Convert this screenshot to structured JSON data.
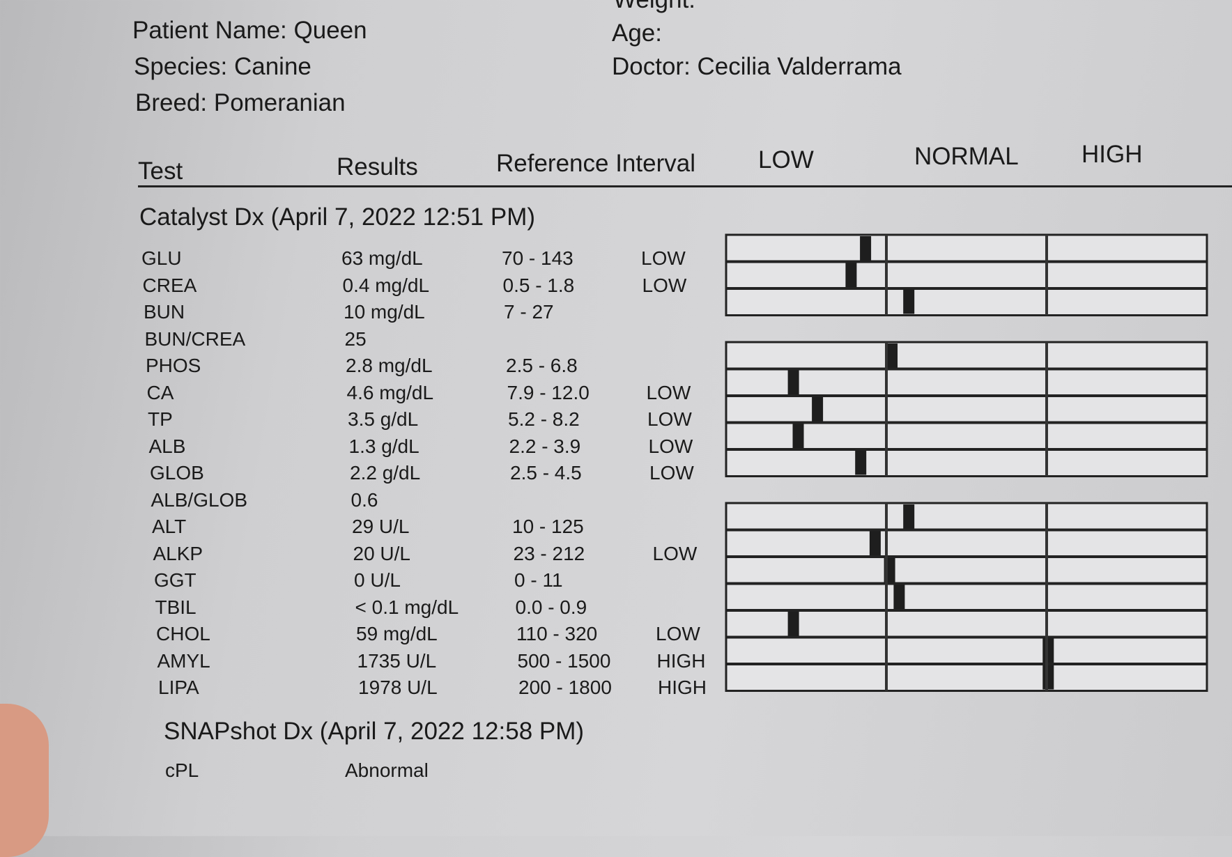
{
  "header": {
    "weight_label": "Weight:",
    "patient_name": "Patient Name: Queen",
    "species": "Species: Canine",
    "breed": "Breed: Pomeranian",
    "age": "Age:",
    "doctor": "Doctor: Cecilia Valderrama"
  },
  "table": {
    "columns": [
      "Test",
      "Results",
      "Reference Interval",
      "LOW",
      "NORMAL",
      "HIGH"
    ],
    "sections": [
      {
        "title": "Catalyst Dx (April 7, 2022 12:51 PM)",
        "rows": [
          [
            "GLU",
            "63 mg/dL",
            "70 - 143",
            "LOW"
          ],
          [
            "CREA",
            "0.4 mg/dL",
            "0.5 - 1.8",
            "LOW"
          ],
          [
            "BUN",
            "10 mg/dL",
            "7 - 27"
          ],
          [
            "BUN/CREA",
            "25"
          ],
          [
            "PHOS",
            "2.8 mg/dL",
            "2.5 - 6.8"
          ],
          [
            "CA",
            "4.6 mg/dL",
            "7.9 - 12.0",
            "LOW"
          ],
          [
            "TP",
            "3.5 g/dL",
            "5.2 - 8.2",
            "LOW"
          ],
          [
            "ALB",
            "1.3 g/dL",
            "2.2 - 3.9",
            "LOW"
          ],
          [
            "GLOB",
            "2.2 g/dL",
            "2.5 - 4.5",
            "LOW"
          ],
          [
            "ALB/GLOB",
            "0.6"
          ],
          [
            "ALT",
            "29 U/L",
            "10 - 125"
          ],
          [
            "ALKP",
            "20 U/L",
            "23 - 212",
            "LOW"
          ],
          [
            "GGT",
            "0 U/L",
            "0 - 11"
          ],
          [
            "TBIL",
            "< 0.1 mg/dL",
            "0.0 - 0.9"
          ],
          [
            "CHOL",
            "59 mg/dL",
            "110 - 320",
            "LOW"
          ],
          [
            "AMYL",
            "1735 U/L",
            "500 - 1500",
            "HIGH"
          ],
          [
            "LIPA",
            "1978 U/L",
            "200 - 1800",
            "HIGH"
          ]
        ]
      },
      {
        "title": "SNAPshot Dx (April 7, 2022 12:58 PM)",
        "rows": [
          [
            "cPL",
            "Abnormal"
          ]
        ]
      }
    ]
  }
}
